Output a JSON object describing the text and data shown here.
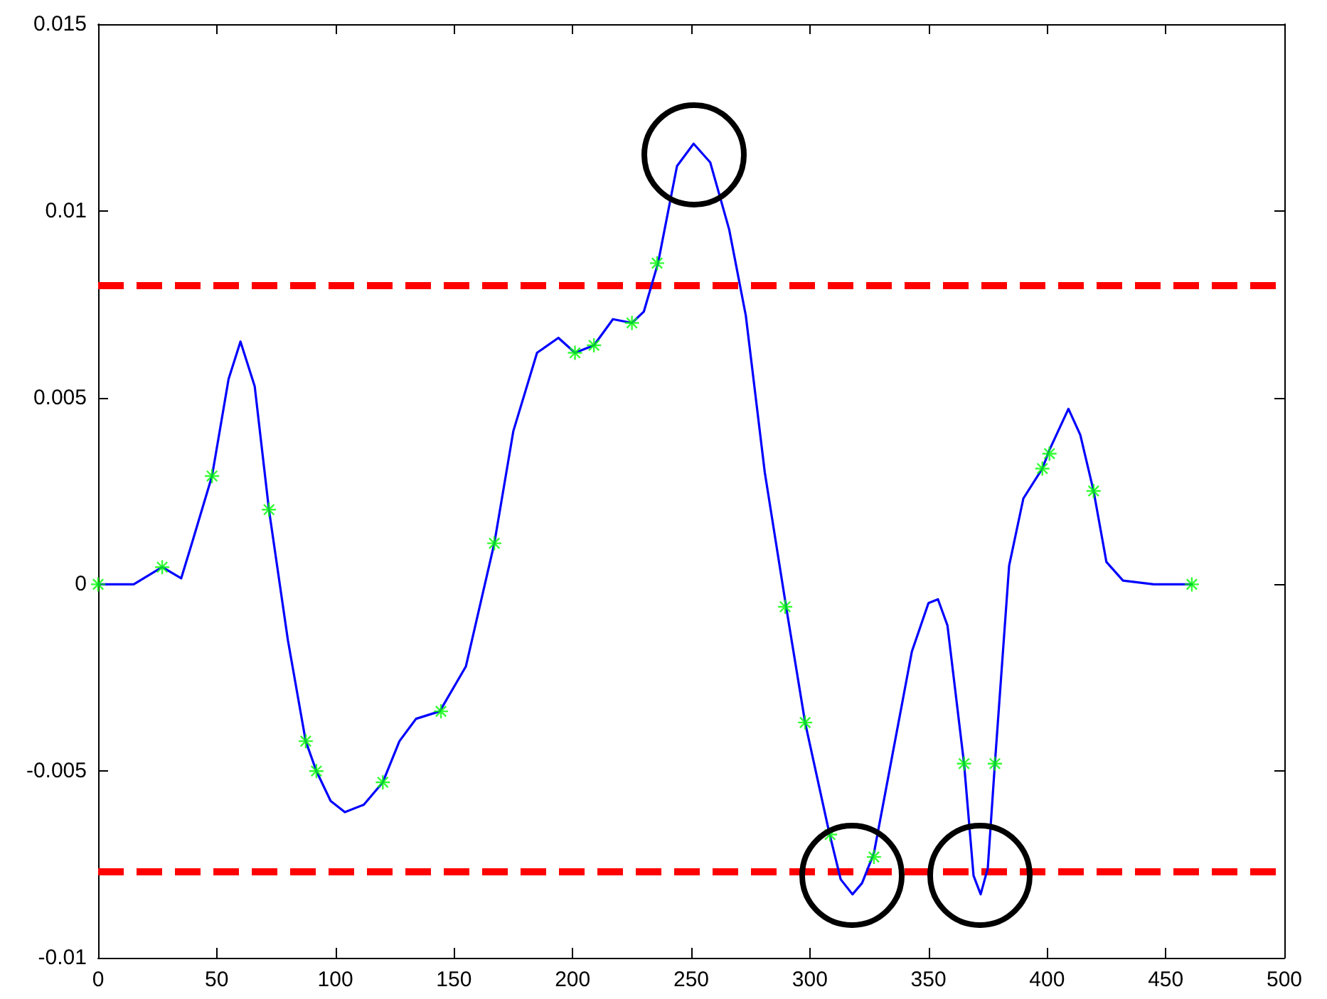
{
  "chart_data": {
    "type": "line",
    "xlim": [
      0,
      500
    ],
    "xticks": [
      0,
      50,
      100,
      150,
      200,
      250,
      300,
      350,
      400,
      450,
      500
    ],
    "ylim": [
      -0.01,
      0.015
    ],
    "yticks": [
      -0.01,
      -0.005,
      0,
      0.005,
      0.01,
      0.015
    ],
    "grid": false,
    "series": [
      {
        "color": "#0000ff",
        "marker": "none",
        "line_style": "solid",
        "x": [
          0,
          15,
          27,
          35,
          40,
          48,
          55,
          60,
          66,
          72,
          80,
          87.5,
          92,
          98,
          104,
          112,
          120,
          127,
          134,
          144,
          155,
          167,
          175,
          185,
          194,
          201,
          209,
          217,
          225,
          230,
          236,
          244,
          251,
          258,
          266,
          273,
          281,
          290,
          298,
          308,
          313,
          318,
          322,
          327,
          335,
          343,
          350,
          354,
          358,
          365,
          369,
          372,
          375,
          378,
          384,
          390,
          398,
          401,
          409,
          414,
          419.6,
          425,
          432,
          445,
          461
        ],
        "values": [
          0,
          0,
          0.00046,
          0.00016,
          0.0012,
          0.0029,
          0.0055,
          0.0065,
          0.0053,
          0.002,
          -0.0015,
          -0.0042,
          -0.005,
          -0.0058,
          -0.0061,
          -0.0059,
          -0.0053,
          -0.0042,
          -0.0036,
          -0.0034,
          -0.0022,
          0.0011,
          0.0041,
          0.0062,
          0.0066,
          0.0062,
          0.0064,
          0.0071,
          0.007,
          0.0073,
          0.0086,
          0.0112,
          0.0118,
          0.0113,
          0.0095,
          0.0072,
          0.003,
          -0.0006,
          -0.0037,
          -0.0066,
          -0.0079,
          -0.0083,
          -0.008,
          -0.0072,
          -0.0045,
          -0.0018,
          -0.0005,
          -0.0004,
          -0.0011,
          -0.0048,
          -0.0078,
          -0.0083,
          -0.0076,
          -0.0048,
          0.0005,
          0.0023,
          0.0031,
          0.0036,
          0.0047,
          0.004,
          0.0025,
          0.0006,
          0.0001,
          0,
          0
        ]
      },
      {
        "type": "scatter",
        "color": "#00ff00",
        "marker": "cross",
        "x": [
          0,
          27,
          48,
          72,
          87.5,
          92,
          120,
          144.5,
          167,
          201,
          209,
          225,
          235.6,
          289.6,
          298,
          308.5,
          327,
          365,
          378,
          398,
          401,
          419.6,
          461
        ],
        "values": [
          0,
          0.00046,
          0.0029,
          0.002,
          -0.0042,
          -0.005,
          -0.0053,
          -0.0034,
          0.0011,
          0.0062,
          0.0064,
          0.007,
          0.0086,
          -0.0006,
          -0.0037,
          -0.0067,
          -0.0073,
          -0.0048,
          -0.0048,
          0.0031,
          0.0035,
          0.0025,
          0
        ]
      }
    ],
    "ref_lines": [
      {
        "axis": "y",
        "value": 0.008,
        "color": "#ff0000",
        "line_style": "dashed"
      },
      {
        "axis": "y",
        "value": -0.0077,
        "color": "#ff0000",
        "line_style": "dashed"
      }
    ]
  }
}
